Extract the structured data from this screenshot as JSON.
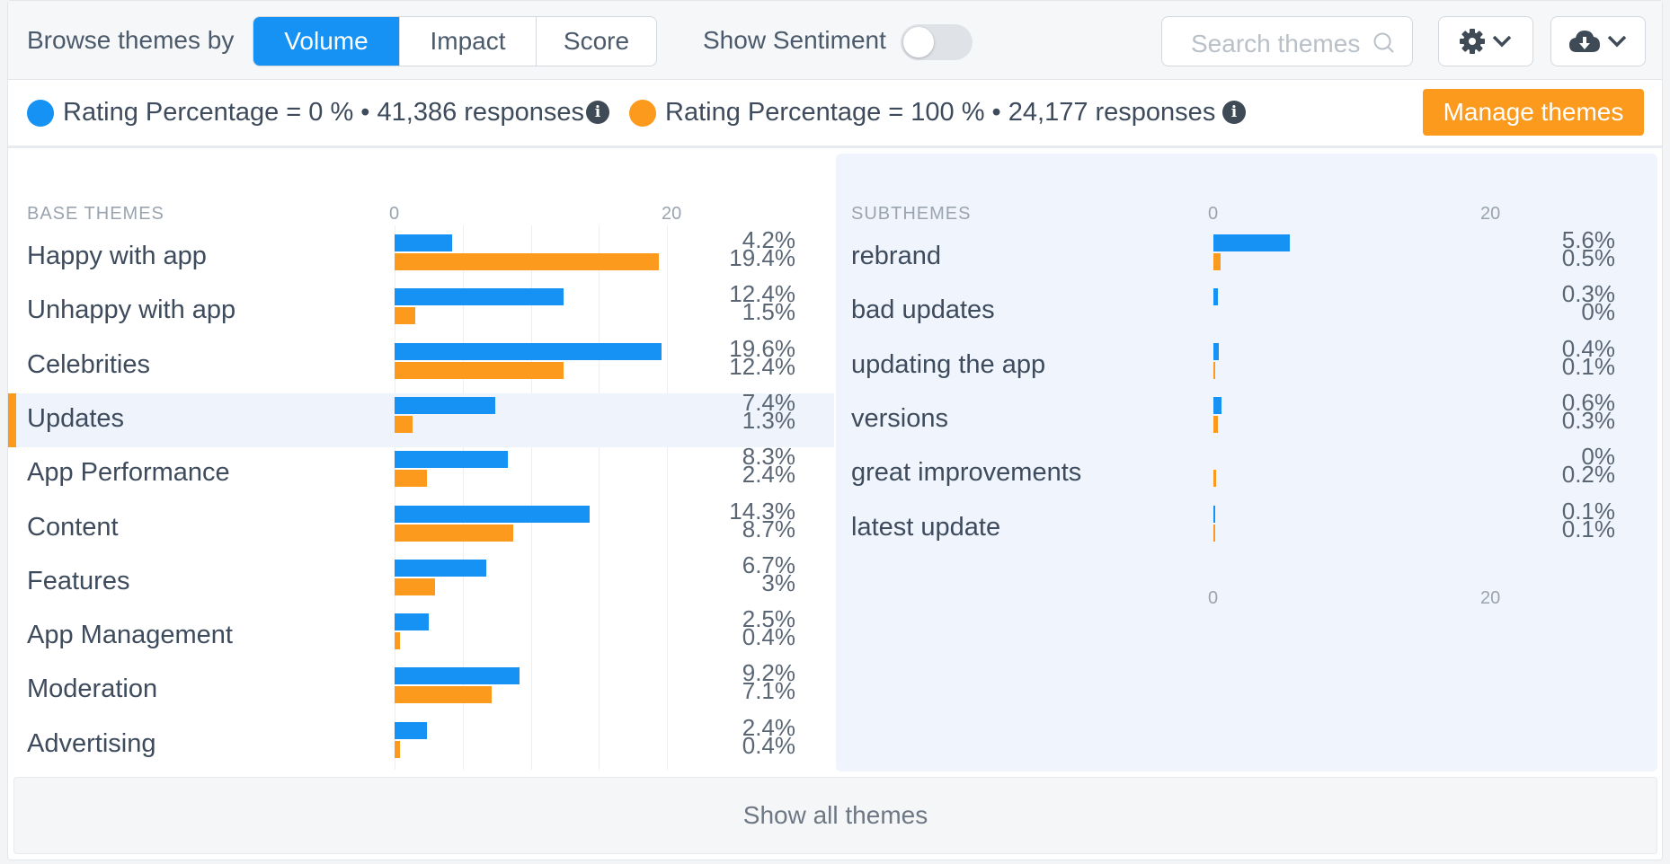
{
  "toolbar": {
    "browse_label": "Browse themes by",
    "modes": [
      "Volume",
      "Impact",
      "Score"
    ],
    "active_mode": "Volume",
    "sentiment_label": "Show Sentiment",
    "sentiment_on": false,
    "search_placeholder": "Search themes",
    "settings_icon": "gear-icon",
    "download_icon": "cloud-download-icon"
  },
  "legend": {
    "items": [
      {
        "text": "Rating Percentage = 0 % • 41,386 responses",
        "color": "#1592f3"
      },
      {
        "text": "Rating Percentage = 100 % • 24,177 responses",
        "color": "#fb9a1d"
      }
    ],
    "manage_label": "Manage themes"
  },
  "base": {
    "header": "BASE THEMES",
    "axis_ticks": [
      "0",
      "20"
    ],
    "selected_index": 3
  },
  "sub": {
    "header": "SUBTHEMES",
    "axis_ticks": [
      "0",
      "20"
    ]
  },
  "footer": {
    "show_all": "Show all themes"
  },
  "chart_data": [
    {
      "type": "bar",
      "title": "BASE THEMES",
      "orientation": "horizontal",
      "xlim": [
        0,
        20
      ],
      "categories": [
        "Happy with app",
        "Unhappy with app",
        "Celebrities",
        "Updates",
        "App Performance",
        "Content",
        "Features",
        "App Management",
        "Moderation",
        "Advertising"
      ],
      "series": [
        {
          "name": "Rating Percentage = 0 %",
          "color": "#1592f3",
          "values": [
            4.2,
            12.4,
            19.6,
            7.4,
            8.3,
            14.3,
            6.7,
            2.5,
            9.2,
            2.4
          ],
          "labels": [
            "4.2%",
            "12.4%",
            "19.6%",
            "7.4%",
            "8.3%",
            "14.3%",
            "6.7%",
            "2.5%",
            "9.2%",
            "2.4%"
          ]
        },
        {
          "name": "Rating Percentage = 100 %",
          "color": "#fb9a1d",
          "values": [
            19.4,
            1.5,
            12.4,
            1.3,
            2.4,
            8.7,
            3,
            0.4,
            7.1,
            0.4
          ],
          "labels": [
            "19.4%",
            "1.5%",
            "12.4%",
            "1.3%",
            "2.4%",
            "8.7%",
            "3%",
            "0.4%",
            "7.1%",
            "0.4%"
          ]
        }
      ]
    },
    {
      "type": "bar",
      "title": "SUBTHEMES",
      "orientation": "horizontal",
      "xlim": [
        0,
        20
      ],
      "categories": [
        "rebrand",
        "bad updates",
        "updating the app",
        "versions",
        "great improvements",
        "latest update"
      ],
      "series": [
        {
          "name": "Rating Percentage = 0 %",
          "color": "#1592f3",
          "values": [
            5.6,
            0.3,
            0.4,
            0.6,
            0,
            0.1
          ],
          "labels": [
            "5.6%",
            "0.3%",
            "0.4%",
            "0.6%",
            "0%",
            "0.1%"
          ]
        },
        {
          "name": "Rating Percentage = 100 %",
          "color": "#fb9a1d",
          "values": [
            0.5,
            0,
            0.1,
            0.3,
            0.2,
            0.1
          ],
          "labels": [
            "0.5%",
            "0%",
            "0.1%",
            "0.3%",
            "0.2%",
            "0.1%"
          ]
        }
      ]
    }
  ]
}
